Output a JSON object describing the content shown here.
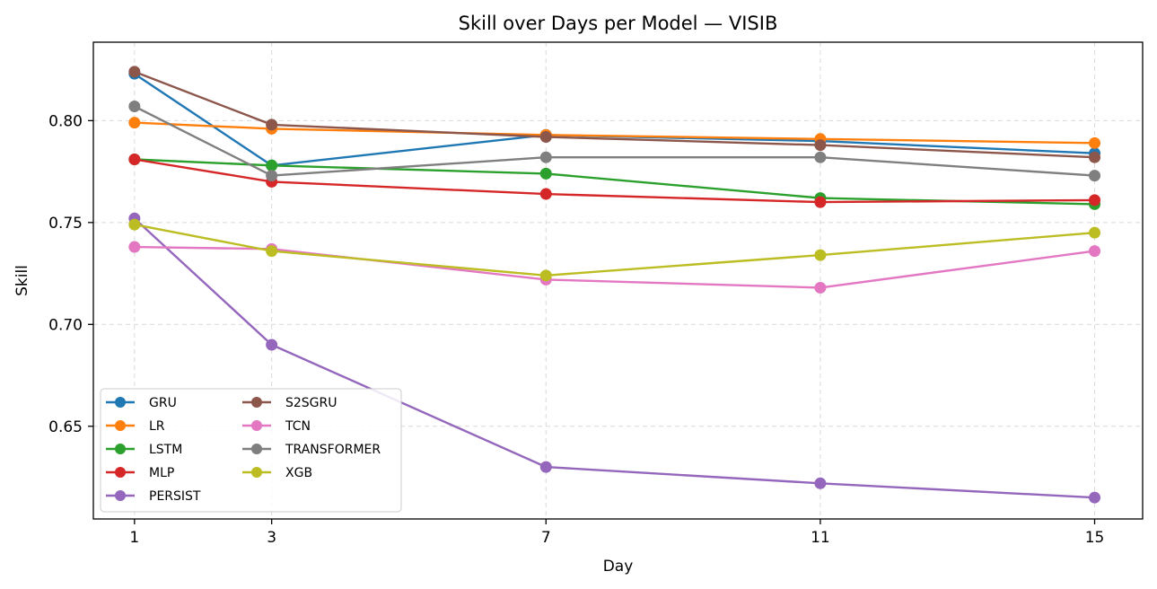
{
  "chart_data": {
    "type": "line",
    "title": "Skill over Days per Model — VISIB",
    "xlabel": "Day",
    "ylabel": "Skill",
    "x": [
      1,
      3,
      7,
      11,
      15
    ],
    "x_ticks": [
      "1",
      "3",
      "7",
      "11",
      "15"
    ],
    "xlim": [
      0.4,
      15.7
    ],
    "ylim": [
      0.6045,
      0.8385
    ],
    "y_ticks": [
      0.65,
      0.7,
      0.75,
      0.8
    ],
    "y_tick_labels": [
      "0.65",
      "0.70",
      "0.75",
      "0.80"
    ],
    "grid": true,
    "legend_position": "lower-left",
    "series": [
      {
        "name": "GRU",
        "color": "#1f77b4",
        "values": [
          0.823,
          0.778,
          0.793,
          0.79,
          0.784
        ]
      },
      {
        "name": "LR",
        "color": "#ff7f0e",
        "values": [
          0.799,
          0.796,
          0.793,
          0.791,
          0.789
        ]
      },
      {
        "name": "LSTM",
        "color": "#2ca02c",
        "values": [
          0.781,
          0.778,
          0.774,
          0.762,
          0.759
        ]
      },
      {
        "name": "MLP",
        "color": "#d62728",
        "values": [
          0.781,
          0.77,
          0.764,
          0.76,
          0.761
        ]
      },
      {
        "name": "PERSIST",
        "color": "#9467bd",
        "values": [
          0.752,
          0.69,
          0.63,
          0.622,
          0.615
        ]
      },
      {
        "name": "S2SGRU",
        "color": "#8c564b",
        "values": [
          0.824,
          0.798,
          0.792,
          0.788,
          0.782
        ]
      },
      {
        "name": "TCN",
        "color": "#e377c2",
        "values": [
          0.738,
          0.737,
          0.722,
          0.718,
          0.736
        ]
      },
      {
        "name": "TRANSFORMER",
        "color": "#7f7f7f",
        "values": [
          0.807,
          0.773,
          0.782,
          0.782,
          0.773
        ]
      },
      {
        "name": "XGB",
        "color": "#bcbd22",
        "values": [
          0.749,
          0.736,
          0.724,
          0.734,
          0.745
        ]
      }
    ]
  }
}
